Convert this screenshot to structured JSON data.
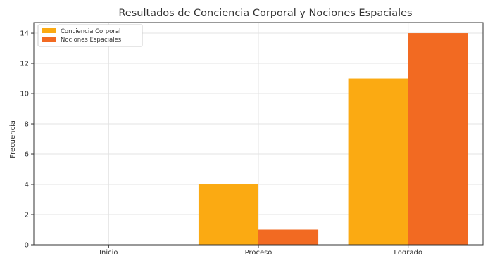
{
  "chart_data": {
    "type": "bar",
    "title": "Resultados de Conciencia Corporal y Nociones Espaciales",
    "xlabel": "",
    "ylabel": "Frecuencia",
    "categories": [
      "Inicio",
      "Proceso",
      "Logrado"
    ],
    "series": [
      {
        "name": "Conciencia Corporal",
        "values": [
          0,
          4,
          11
        ],
        "color": "#FBAA12"
      },
      {
        "name": "Nociones Espaciales",
        "values": [
          0,
          1,
          14
        ],
        "color": "#F26A22"
      }
    ],
    "ylim": [
      0,
      14.7
    ],
    "yticks": [
      0,
      2,
      4,
      6,
      8,
      10,
      12,
      14
    ],
    "grid": true,
    "legend": "top-left"
  }
}
